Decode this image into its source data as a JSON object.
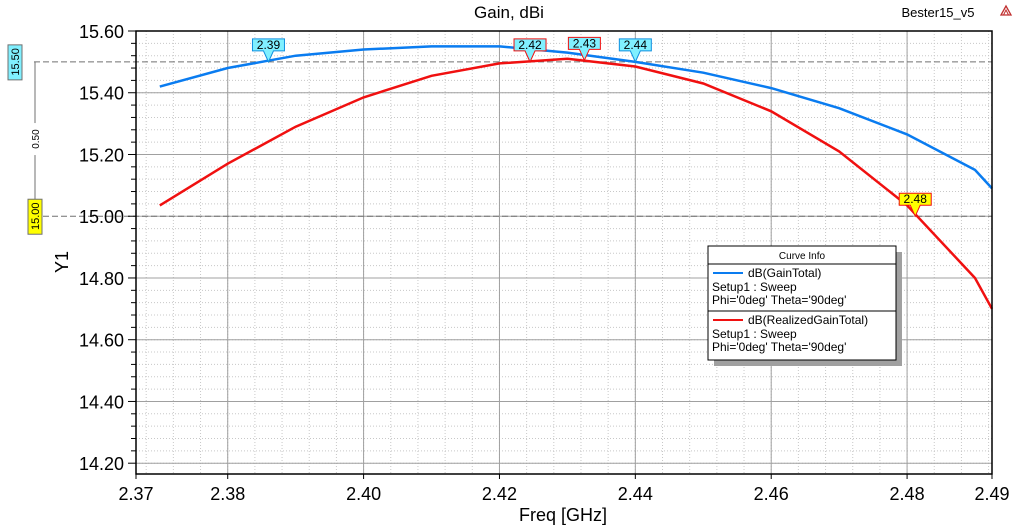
{
  "chart_data": {
    "type": "line",
    "title": "Gain, dBi",
    "project_label": "Bester15_v5",
    "xlabel": "Freq [GHz]",
    "ylabel": "Y1",
    "xlim": [
      2.3665,
      2.4925
    ],
    "ylim": [
      14.165,
      15.6
    ],
    "grid": true,
    "x_ticks": [
      {
        "value": 2.3665,
        "label": "2.37"
      },
      {
        "value": 2.38,
        "label": "2.38"
      },
      {
        "value": 2.4,
        "label": "2.40"
      },
      {
        "value": 2.42,
        "label": "2.42"
      },
      {
        "value": 2.44,
        "label": "2.44"
      },
      {
        "value": 2.46,
        "label": "2.46"
      },
      {
        "value": 2.48,
        "label": "2.48"
      },
      {
        "value": 2.4925,
        "label": "2.49"
      }
    ],
    "y_ticks": [
      {
        "value": 15.6,
        "label": "15.60"
      },
      {
        "value": 15.4,
        "label": "15.40"
      },
      {
        "value": 15.2,
        "label": "15.20"
      },
      {
        "value": 15.0,
        "label": "15.00"
      },
      {
        "value": 14.8,
        "label": "14.80"
      },
      {
        "value": 14.6,
        "label": "14.60"
      },
      {
        "value": 14.4,
        "label": "14.40"
      },
      {
        "value": 14.2,
        "label": "14.20"
      }
    ],
    "x": [
      2.37,
      2.38,
      2.39,
      2.4,
      2.41,
      2.42,
      2.43,
      2.44,
      2.45,
      2.46,
      2.47,
      2.48,
      2.49,
      2.4925
    ],
    "series": [
      {
        "name": "dB(GainTotal)",
        "color": "#0a7cf0",
        "values": [
          15.42,
          15.48,
          15.52,
          15.54,
          15.55,
          15.55,
          15.53,
          15.5,
          15.465,
          15.415,
          15.35,
          15.265,
          15.15,
          15.09
        ]
      },
      {
        "name": "dB(RealizedGainTotal)",
        "color": "#f01010",
        "values": [
          15.035,
          15.17,
          15.29,
          15.385,
          15.455,
          15.495,
          15.51,
          15.485,
          15.43,
          15.34,
          15.21,
          15.035,
          14.8,
          14.7
        ]
      }
    ],
    "legend": {
      "title": "Curve Info",
      "placement": "center-right",
      "entries": [
        {
          "name": "dB(GainTotal)",
          "line2": "Setup1 : Sweep",
          "line3": "Phi='0deg' Theta='90deg'"
        },
        {
          "name": "dB(RealizedGainTotal)",
          "line2": "Setup1 : Sweep",
          "line3": "Phi='0deg' Theta='90deg'"
        }
      ]
    },
    "markers": [
      {
        "label": "2.39",
        "x": 2.386,
        "y": 15.5,
        "series": 0,
        "fill": "#80f0ff",
        "border": "#1090e0"
      },
      {
        "label": "2.42",
        "x": 2.4245,
        "y": 15.5,
        "series": 1,
        "fill": "#80f0ff",
        "border": "#f01010"
      },
      {
        "label": "2.43",
        "x": 2.4325,
        "y": 15.505,
        "series": 1,
        "fill": "#80f0ff",
        "border": "#f01010"
      },
      {
        "label": "2.44",
        "x": 2.44,
        "y": 15.5,
        "series": 0,
        "fill": "#80f0ff",
        "border": "#1090e0"
      },
      {
        "label": "2.48",
        "x": 2.4812,
        "y": 15.0,
        "series": 1,
        "fill": "#ffff00",
        "border": "#f01010"
      }
    ],
    "delta": {
      "top": "15.50",
      "bottom": "15.00",
      "diff": "0.50",
      "top_value": 15.5,
      "bottom_value": 15.0
    }
  }
}
